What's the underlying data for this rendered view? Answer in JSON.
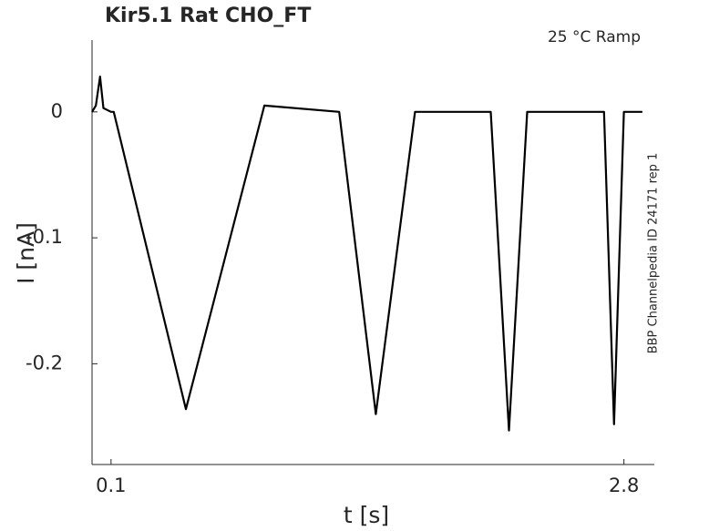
{
  "chart_data": {
    "type": "line",
    "title": "Kir5.1  Rat  CHO_FT",
    "annotation": "25 °C  Ramp",
    "side_note": "BBP Channelpedia ID 24171 rep 1",
    "xlabel": "t [s]",
    "ylabel": "I [nA]",
    "x": [
      0.0,
      0.02,
      0.042,
      0.06,
      0.1,
      0.114,
      0.494,
      0.907,
      1.301,
      1.494,
      1.7,
      2.099,
      2.195,
      2.291,
      2.695,
      2.748,
      2.8,
      2.897
    ],
    "values": [
      0.0,
      0.005,
      0.028,
      0.003,
      0.0,
      0.0,
      -0.236,
      0.005,
      0.0,
      -0.24,
      0.0,
      0.0,
      -0.253,
      0.0,
      0.0,
      -0.248,
      0.0,
      0.0
    ],
    "color": "#000000",
    "xlim": [
      0,
      2.96
    ],
    "ylim": [
      -0.28,
      0.057
    ],
    "xticks": [
      0.1,
      2.8
    ],
    "yticks": [
      -0.2,
      -0.1,
      0
    ]
  }
}
